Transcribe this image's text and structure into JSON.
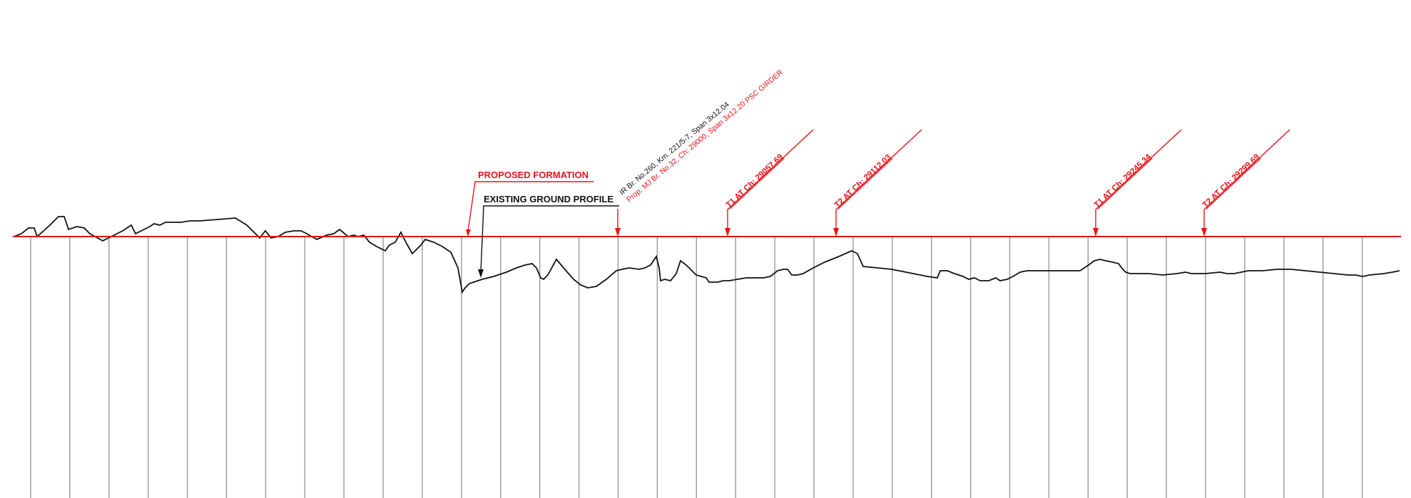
{
  "labels": {
    "proposed_formation": "PROPOSED FORMATION",
    "existing_ground_profile": "EXISTING GROUND PROFILE",
    "bridge_existing": "IR Br. No.260, Km. 221/5-7, Span 3x12.04",
    "bridge_proposed": "Prop. MJ Br. No.32, Ch: 29000, Span 3x12.20 PSC GIRDER"
  },
  "chainage_markers": [
    {
      "text": "T1 AT Ch: 29057.69"
    },
    {
      "text": "T2 AT Ch: 29112.03"
    },
    {
      "text": "T1 AT Ch: 29245.34"
    },
    {
      "text": "T2 AT Ch: 29299.69"
    }
  ],
  "colors": {
    "formation": "#e8141b",
    "ground": "#111111",
    "stations": "#9a9a9a"
  }
}
